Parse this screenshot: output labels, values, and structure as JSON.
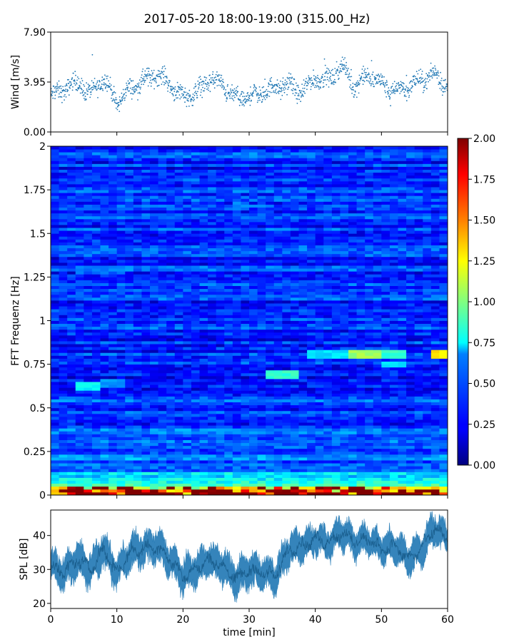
{
  "title": "2017-05-20 18:00-19:00 (315.00_Hz)",
  "chart_data": [
    {
      "type": "scatter",
      "ylabel": "Wind [m/s]",
      "ylim": [
        0,
        7.9
      ],
      "yticks": [
        "0.00",
        "3.95",
        "7.90"
      ],
      "xlim": [
        0,
        60
      ],
      "marker_color": "#1f77b4",
      "x": [
        0,
        2,
        4,
        6,
        8,
        10,
        12,
        14,
        16,
        18,
        20,
        22,
        24,
        26,
        28,
        30,
        32,
        34,
        36,
        38,
        40,
        42,
        44,
        46,
        48,
        50,
        52,
        54,
        56,
        58,
        60
      ],
      "values": [
        2.8,
        3.4,
        3.9,
        3.0,
        4.3,
        2.3,
        3.4,
        4.0,
        4.6,
        3.8,
        2.8,
        3.1,
        4.2,
        3.7,
        2.6,
        2.8,
        3.1,
        3.5,
        3.7,
        3.1,
        4.3,
        4.1,
        5.2,
        3.6,
        4.5,
        3.8,
        3.2,
        3.6,
        4.1,
        4.6,
        3.6
      ]
    },
    {
      "type": "heatmap",
      "ylabel": "FFT Frequenz [Hz]",
      "ylim": [
        0,
        2
      ],
      "yticks": [
        "0",
        "0.25",
        "0.5",
        "0.75",
        "1",
        "1.25",
        "1.5",
        "1.75",
        "2"
      ],
      "xlim": [
        0,
        60
      ],
      "colormap": "jet",
      "colorbar": {
        "range": [
          0,
          2
        ],
        "ticks": [
          "0.00",
          "0.25",
          "0.50",
          "0.75",
          "1.00",
          "1.25",
          "1.50",
          "1.75",
          "2.00"
        ]
      },
      "bands": [
        {
          "t_start": 3.5,
          "t_end": 7.5,
          "freq": 0.63,
          "value": 0.75
        },
        {
          "t_start": 7.5,
          "t_end": 11.5,
          "freq": 0.64,
          "value": 0.55
        },
        {
          "t_start": 4.0,
          "t_end": 11.5,
          "freq": 1.29,
          "value": 0.45
        },
        {
          "t_start": 27.0,
          "t_end": 30.5,
          "freq": 1.66,
          "value": 0.5
        },
        {
          "t_start": 32.5,
          "t_end": 37.5,
          "freq": 0.7,
          "value": 0.85
        },
        {
          "t_start": 38.5,
          "t_end": 44.5,
          "freq": 0.8,
          "value": 0.7
        },
        {
          "t_start": 45.0,
          "t_end": 49.5,
          "freq": 0.8,
          "value": 1.05
        },
        {
          "t_start": 49.5,
          "t_end": 53.5,
          "freq": 0.8,
          "value": 0.85
        },
        {
          "t_start": 49.5,
          "t_end": 53.5,
          "freq": 0.75,
          "value": 0.7
        },
        {
          "t_start": 57.5,
          "t_end": 60.0,
          "freq": 0.81,
          "value": 1.3
        }
      ]
    },
    {
      "type": "area",
      "xlabel": "time [min]",
      "ylabel": "SPL [dB]",
      "ylim": [
        18.5,
        47.5
      ],
      "yticks": [
        20,
        30,
        40
      ],
      "xlim": [
        0,
        60
      ],
      "xticks": [
        0,
        10,
        20,
        30,
        40,
        50,
        60
      ],
      "color": "#1f77b4",
      "x": [
        0,
        2,
        4,
        6,
        8,
        10,
        12,
        14,
        16,
        18,
        20,
        22,
        24,
        26,
        28,
        30,
        32,
        34,
        36,
        38,
        40,
        42,
        44,
        46,
        48,
        50,
        52,
        54,
        56,
        58,
        60
      ],
      "values": [
        31,
        29,
        33,
        30,
        36,
        29,
        35,
        36,
        37,
        33,
        28,
        30,
        33,
        31,
        27,
        30,
        29,
        28,
        36,
        37,
        39,
        38,
        41,
        38,
        39,
        36,
        37,
        33,
        36,
        42,
        39
      ],
      "spread": [
        3.5,
        4,
        4,
        4,
        4,
        3.5,
        4,
        4,
        4,
        4,
        4,
        4,
        4,
        4,
        4,
        4,
        4,
        4,
        3.5,
        3.5,
        3.5,
        3.5,
        3.5,
        3.5,
        3.5,
        3.5,
        3.5,
        4,
        3.5,
        4,
        3.5
      ]
    }
  ]
}
